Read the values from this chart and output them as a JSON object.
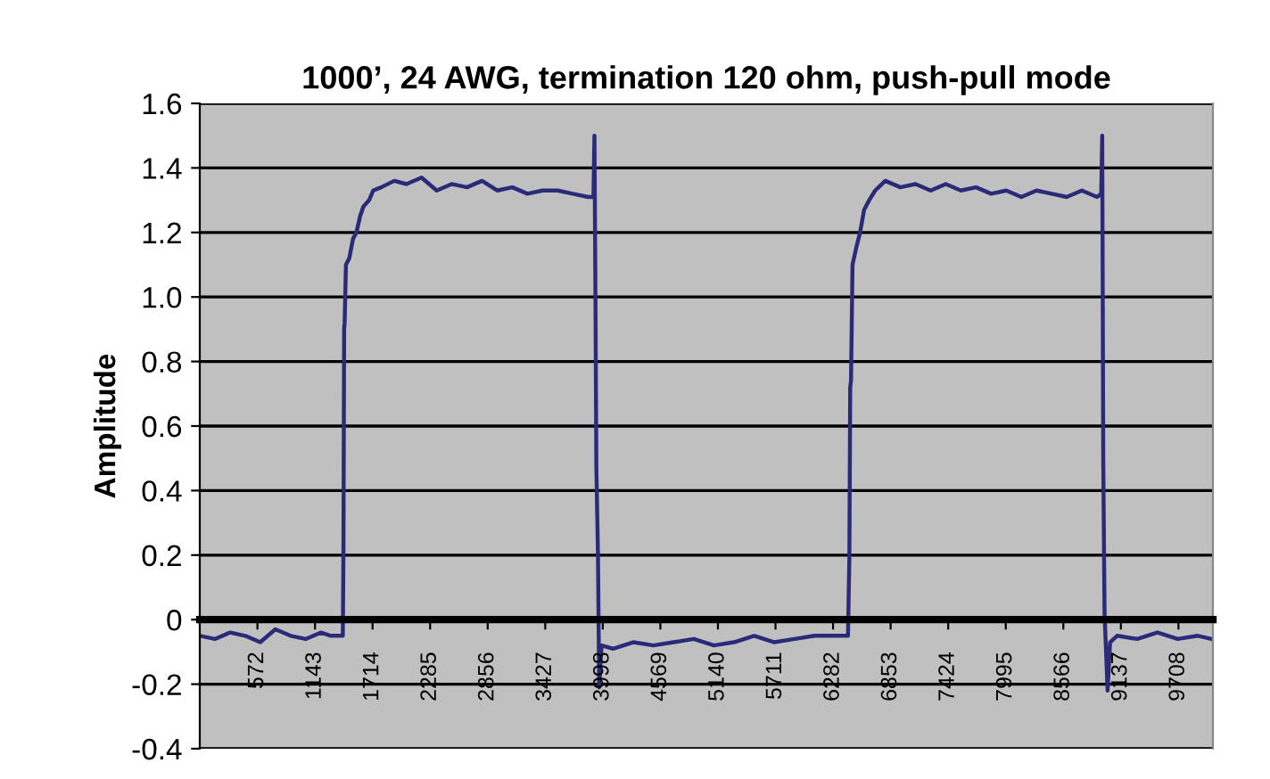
{
  "chart_data": {
    "type": "line",
    "title": "1000’, 24 AWG, termination 120 ohm, push-pull mode",
    "ylabel": "Amplitude",
    "series": [
      {
        "color": "#2a2a78",
        "x": [
          1,
          150,
          300,
          450,
          600,
          750,
          900,
          1050,
          1200,
          1300,
          1419,
          1425,
          1432,
          1437,
          1450,
          1483,
          1520,
          1554,
          1590,
          1623,
          1680,
          1720,
          1800,
          1929,
          2050,
          2200,
          2350,
          2500,
          2650,
          2800,
          2950,
          3100,
          3250,
          3400,
          3550,
          3700,
          3850,
          3905,
          3915,
          3925,
          3934,
          3950,
          3962,
          3985,
          4100,
          4300,
          4500,
          4700,
          4900,
          5100,
          5300,
          5500,
          5700,
          5900,
          6100,
          6300,
          6430,
          6444,
          6452,
          6460,
          6475,
          6510,
          6550,
          6590,
          6640,
          6700,
          6800,
          6950,
          7100,
          7250,
          7400,
          7550,
          7700,
          7850,
          8000,
          8150,
          8300,
          8450,
          8600,
          8750,
          8900,
          8942,
          8952,
          8962,
          8975,
          8990,
          9005,
          9030,
          9100,
          9300,
          9500,
          9700,
          9900,
          10040
        ],
        "values": [
          -0.05,
          -0.06,
          -0.04,
          -0.05,
          -0.07,
          -0.03,
          -0.05,
          -0.06,
          -0.04,
          -0.05,
          -0.05,
          0.2,
          0.9,
          0.92,
          1.1,
          1.12,
          1.18,
          1.2,
          1.25,
          1.28,
          1.3,
          1.33,
          1.34,
          1.36,
          1.35,
          1.37,
          1.33,
          1.35,
          1.34,
          1.36,
          1.33,
          1.34,
          1.32,
          1.33,
          1.33,
          1.32,
          1.31,
          1.31,
          1.5,
          1.0,
          0.47,
          0.2,
          -0.21,
          -0.08,
          -0.09,
          -0.07,
          -0.08,
          -0.07,
          -0.06,
          -0.08,
          -0.07,
          -0.05,
          -0.07,
          -0.06,
          -0.05,
          -0.05,
          -0.05,
          0.2,
          0.72,
          0.74,
          1.1,
          1.15,
          1.2,
          1.27,
          1.3,
          1.33,
          1.36,
          1.34,
          1.35,
          1.33,
          1.35,
          1.33,
          1.34,
          1.32,
          1.33,
          1.31,
          1.33,
          1.32,
          1.31,
          1.33,
          1.31,
          1.32,
          1.5,
          0.5,
          0.02,
          -0.1,
          -0.22,
          -0.07,
          -0.05,
          -0.06,
          -0.04,
          -0.06,
          -0.05,
          -0.06
        ]
      }
    ],
    "xlim": [
      0,
      10050
    ],
    "xticks": [
      572,
      1143,
      1714,
      2285,
      2856,
      3427,
      3998,
      4569,
      5140,
      5711,
      6282,
      6853,
      7424,
      7995,
      8566,
      9137,
      9708
    ],
    "ylim": [
      -0.4,
      1.6
    ],
    "yticks": [
      {
        "value": -0.4,
        "label": "-0.4"
      },
      {
        "value": -0.2,
        "label": "-0.2"
      },
      {
        "value": 0,
        "label": "0"
      },
      {
        "value": 0.2,
        "label": "0.2"
      },
      {
        "value": 0.4,
        "label": "0.4"
      },
      {
        "value": 0.6,
        "label": "0.6"
      },
      {
        "value": 0.8,
        "label": "0.8"
      },
      {
        "value": 1.0,
        "label": "1.0"
      },
      {
        "value": 1.2,
        "label": "1.2"
      },
      {
        "value": 1.4,
        "label": "1.4"
      },
      {
        "value": 1.6,
        "label": "1.6"
      }
    ],
    "grid": "y",
    "marker": "none",
    "line_style": "solid",
    "legend": false
  }
}
